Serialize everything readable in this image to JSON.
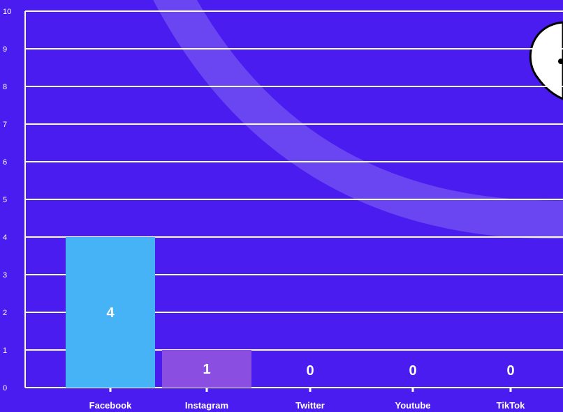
{
  "chart_data": {
    "type": "bar",
    "title": "",
    "xlabel": "",
    "ylabel": "",
    "categories": [
      "Facebook",
      "Instagram",
      "Twitter",
      "Youtube",
      "TikTok"
    ],
    "values": [
      4,
      1,
      0,
      0,
      0
    ],
    "ylim": [
      0,
      10
    ],
    "yticks": [
      "0",
      "1",
      "2",
      "3",
      "4",
      "5",
      "6",
      "7",
      "8",
      "9",
      "10"
    ],
    "bar_colors": [
      "#45b3f6",
      "#8a4fe0",
      "#8a4fe0",
      "#8a4fe0",
      "#8a4fe0"
    ],
    "grid": true,
    "data_labels": [
      "4",
      "1",
      "0",
      "0",
      "0"
    ]
  },
  "colors": {
    "background": "#4a1cf0",
    "gridline": "#ffffff",
    "decor_arc": "#6a45f2"
  }
}
